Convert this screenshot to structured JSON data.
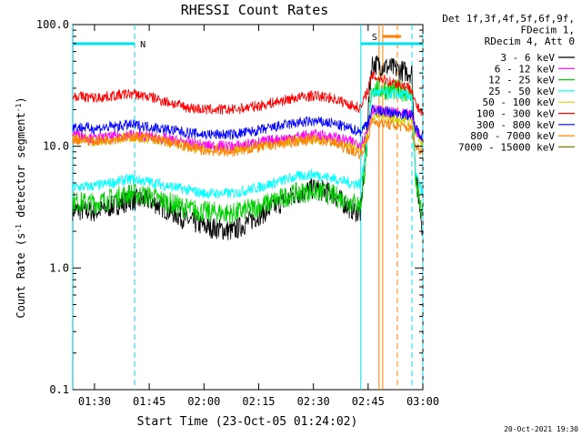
{
  "chart_data": {
    "type": "line",
    "title": "RHESSI Count Rates",
    "xlabel": "Start Time (23-Oct-05 01:24:02)",
    "ylabel": "Count Rate (s⁻¹ detector segment⁻¹)",
    "x_range": [
      "01:24:02",
      "03:00:00"
    ],
    "x_ticks": [
      {
        "t": "01:30",
        "label": "01:30"
      },
      {
        "t": "01:45",
        "label": "01:45"
      },
      {
        "t": "02:00",
        "label": "02:00"
      },
      {
        "t": "02:15",
        "label": "02:15"
      },
      {
        "t": "02:30",
        "label": "02:30"
      },
      {
        "t": "02:45",
        "label": "02:45"
      },
      {
        "t": "03:00",
        "label": "03:00"
      }
    ],
    "y_scale": "log",
    "ylim": [
      0.1,
      100
    ],
    "y_ticks": [
      {
        "v": 0.1,
        "label": "0.1"
      },
      {
        "v": 1,
        "label": "1.0"
      },
      {
        "v": 10,
        "label": "10.0"
      },
      {
        "v": 100,
        "label": "100.0"
      }
    ],
    "legend_header": [
      "Det 1f,3f,4f,5f,6f,9f,",
      "FDecim 1,",
      "RDecim 4, Att 0"
    ],
    "legend_position": "top-right outside",
    "series": [
      {
        "name": "3 - 6 keV",
        "color": "#000000",
        "points": [
          [
            "01:24",
            3.0
          ],
          [
            "01:30",
            2.9
          ],
          [
            "01:40",
            3.6
          ],
          [
            "01:45",
            3.6
          ],
          [
            "01:55",
            2.5
          ],
          [
            "02:00",
            2.2
          ],
          [
            "02:08",
            2.0
          ],
          [
            "02:15",
            2.7
          ],
          [
            "02:25",
            4.0
          ],
          [
            "02:30",
            4.5
          ],
          [
            "02:35",
            4.1
          ],
          [
            "02:40",
            3.1
          ],
          [
            "02:43",
            2.8
          ],
          [
            "02:45",
            20.0
          ],
          [
            "02:46",
            48.0
          ],
          [
            "02:57",
            40.0
          ],
          [
            "02:58",
            6.0
          ],
          [
            "03:00",
            2.0
          ]
        ]
      },
      {
        "name": "6 - 12 keV",
        "color": "#ff00ff",
        "points": [
          [
            "01:24",
            13.0
          ],
          [
            "01:30",
            11.5
          ],
          [
            "01:40",
            12.5
          ],
          [
            "01:45",
            12.0
          ],
          [
            "01:55",
            10.8
          ],
          [
            "02:00",
            10.2
          ],
          [
            "02:08",
            10.0
          ],
          [
            "02:15",
            10.8
          ],
          [
            "02:25",
            12.0
          ],
          [
            "02:30",
            12.5
          ],
          [
            "02:35",
            12.0
          ],
          [
            "02:40",
            11.0
          ],
          [
            "02:43",
            10.5
          ],
          [
            "02:45",
            14.0
          ],
          [
            "02:46",
            20.0
          ],
          [
            "02:57",
            18.0
          ],
          [
            "02:58",
            14.0
          ],
          [
            "03:00",
            11.0
          ]
        ]
      },
      {
        "name": "12 - 25 keV",
        "color": "#00d000",
        "points": [
          [
            "01:24",
            3.5
          ],
          [
            "01:30",
            3.4
          ],
          [
            "01:40",
            4.1
          ],
          [
            "01:45",
            3.9
          ],
          [
            "01:55",
            3.1
          ],
          [
            "02:00",
            2.9
          ],
          [
            "02:08",
            2.8
          ],
          [
            "02:15",
            3.2
          ],
          [
            "02:25",
            4.1
          ],
          [
            "02:30",
            4.3
          ],
          [
            "02:35",
            4.0
          ],
          [
            "02:40",
            3.5
          ],
          [
            "02:43",
            3.3
          ],
          [
            "02:45",
            12.0
          ],
          [
            "02:46",
            30.0
          ],
          [
            "02:57",
            28.0
          ],
          [
            "02:58",
            5.0
          ],
          [
            "03:00",
            2.6
          ]
        ]
      },
      {
        "name": "25 - 50 keV",
        "color": "#00ffff",
        "points": [
          [
            "01:24",
            4.6
          ],
          [
            "01:30",
            4.7
          ],
          [
            "01:40",
            5.4
          ],
          [
            "01:45",
            5.1
          ],
          [
            "01:55",
            4.4
          ],
          [
            "02:00",
            4.1
          ],
          [
            "02:08",
            4.1
          ],
          [
            "02:15",
            4.6
          ],
          [
            "02:25",
            5.6
          ],
          [
            "02:30",
            5.9
          ],
          [
            "02:35",
            5.5
          ],
          [
            "02:40",
            5.0
          ],
          [
            "02:43",
            4.9
          ],
          [
            "02:45",
            13.0
          ],
          [
            "02:46",
            28.0
          ],
          [
            "02:57",
            26.0
          ],
          [
            "02:58",
            6.0
          ],
          [
            "03:00",
            4.0
          ]
        ]
      },
      {
        "name": "50 - 100 keV",
        "color": "#d0d000",
        "points": [
          [
            "01:24",
            12.0
          ],
          [
            "01:30",
            11.0
          ],
          [
            "01:40",
            12.0
          ],
          [
            "01:45",
            11.5
          ],
          [
            "01:55",
            10.3
          ],
          [
            "02:00",
            9.7
          ],
          [
            "02:08",
            9.6
          ],
          [
            "02:15",
            10.3
          ],
          [
            "02:25",
            11.3
          ],
          [
            "02:30",
            11.5
          ],
          [
            "02:35",
            11.2
          ],
          [
            "02:40",
            10.2
          ],
          [
            "02:43",
            9.8
          ],
          [
            "02:45",
            13.0
          ],
          [
            "02:46",
            18.0
          ],
          [
            "02:57",
            16.0
          ],
          [
            "02:58",
            13.0
          ],
          [
            "03:00",
            10.0
          ]
        ]
      },
      {
        "name": "100 - 300 keV",
        "color": "#ff0000",
        "points": [
          [
            "01:24",
            26.0
          ],
          [
            "01:30",
            25.0
          ],
          [
            "01:40",
            27.0
          ],
          [
            "01:45",
            25.5
          ],
          [
            "01:55",
            21.0
          ],
          [
            "02:00",
            20.0
          ],
          [
            "02:08",
            20.0
          ],
          [
            "02:15",
            21.5
          ],
          [
            "02:25",
            25.0
          ],
          [
            "02:30",
            26.0
          ],
          [
            "02:35",
            25.0
          ],
          [
            "02:40",
            22.0
          ],
          [
            "02:43",
            20.5
          ],
          [
            "02:45",
            30.0
          ],
          [
            "02:46",
            38.0
          ],
          [
            "02:57",
            30.0
          ],
          [
            "02:58",
            22.0
          ],
          [
            "03:00",
            18.0
          ]
        ]
      },
      {
        "name": "300 - 800 keV",
        "color": "#0000ff",
        "points": [
          [
            "01:24",
            14.5
          ],
          [
            "01:30",
            14.0
          ],
          [
            "01:40",
            15.0
          ],
          [
            "01:45",
            14.5
          ],
          [
            "01:55",
            13.0
          ],
          [
            "02:00",
            12.5
          ],
          [
            "02:08",
            12.5
          ],
          [
            "02:15",
            13.5
          ],
          [
            "02:25",
            15.5
          ],
          [
            "02:30",
            16.0
          ],
          [
            "02:35",
            15.5
          ],
          [
            "02:40",
            14.0
          ],
          [
            "02:43",
            13.2
          ],
          [
            "02:45",
            16.0
          ],
          [
            "02:46",
            20.0
          ],
          [
            "02:57",
            18.0
          ],
          [
            "02:58",
            14.0
          ],
          [
            "03:00",
            12.0
          ]
        ]
      },
      {
        "name": "800 - 7000 keV",
        "color": "#ff8000",
        "points": [
          [
            "01:24",
            11.5
          ],
          [
            "01:30",
            11.0
          ],
          [
            "01:40",
            12.0
          ],
          [
            "01:45",
            11.8
          ],
          [
            "01:55",
            10.0
          ],
          [
            "02:00",
            9.2
          ],
          [
            "02:08",
            9.0
          ],
          [
            "02:15",
            9.8
          ],
          [
            "02:25",
            11.0
          ],
          [
            "02:30",
            11.4
          ],
          [
            "02:35",
            10.8
          ],
          [
            "02:40",
            9.4
          ],
          [
            "02:43",
            8.6
          ],
          [
            "02:45",
            12.0
          ],
          [
            "02:46",
            16.0
          ],
          [
            "02:57",
            14.0
          ],
          [
            "02:58",
            10.0
          ],
          [
            "03:00",
            9.0
          ]
        ]
      },
      {
        "name": "7000 - 15000 keV",
        "color": "#808000",
        "points": []
      }
    ],
    "annotations": [
      {
        "text": "N",
        "color": "#00e0f0",
        "bar_t": [
          "01:24",
          "01:41"
        ],
        "dashed_at": "01:41"
      },
      {
        "text": "S",
        "color": "#ff8000",
        "bar_t": [
          "02:49",
          "02:54"
        ]
      },
      {
        "text": "",
        "color": "#00e0f0",
        "bar_t": [
          "02:43",
          "03:00"
        ],
        "dashed_at": "03:00"
      }
    ],
    "vertical_lines": [
      {
        "t": "01:24",
        "color": "#00e0f0",
        "style": "solid"
      },
      {
        "t": "01:41",
        "color": "#00e0f0",
        "style": "dashed"
      },
      {
        "t": "02:43",
        "color": "#00e0f0",
        "style": "solid"
      },
      {
        "t": "02:48",
        "color": "#ff8000",
        "style": "solid"
      },
      {
        "t": "02:49",
        "color": "#ff8000",
        "style": "solid"
      },
      {
        "t": "02:53",
        "color": "#ff8000",
        "style": "dashed"
      },
      {
        "t": "02:57",
        "color": "#00e0f0",
        "style": "dashed"
      },
      {
        "t": "03:00",
        "color": "#00e0f0",
        "style": "dashed"
      }
    ]
  },
  "footer_timestamp": "20-Oct-2021 19:30"
}
